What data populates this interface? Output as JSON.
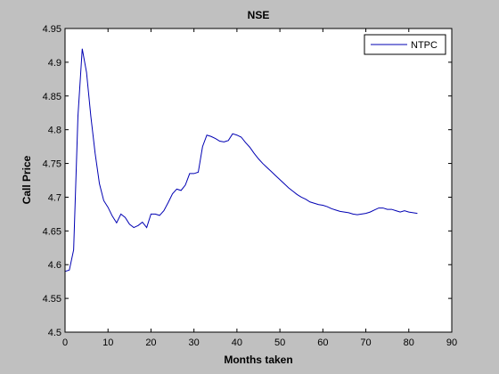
{
  "colors": {
    "figure_bg": "#c0c0c0",
    "axes_bg": "#ffffff",
    "line": "#0000b3",
    "axis": "#000000"
  },
  "chart_data": {
    "type": "line",
    "title": "NSE",
    "xlabel": "Months taken",
    "ylabel": "Call Price",
    "xlim": [
      0,
      90
    ],
    "ylim": [
      4.5,
      4.95
    ],
    "xticks": [
      0,
      10,
      20,
      30,
      40,
      50,
      60,
      70,
      80,
      90
    ],
    "yticks": [
      4.5,
      4.55,
      4.6,
      4.65,
      4.7,
      4.75,
      4.8,
      4.85,
      4.9,
      4.95
    ],
    "ytick_labels": [
      "4.5",
      "4.55",
      "4.6",
      "4.65",
      "4.7",
      "4.75",
      "4.8",
      "4.85",
      "4.9",
      "4.95"
    ],
    "grid": false,
    "legend": {
      "position": "top-right",
      "entries": [
        "NTPC"
      ]
    },
    "series": [
      {
        "name": "NTPC",
        "x": [
          0,
          1,
          2,
          3,
          4,
          5,
          6,
          7,
          8,
          9,
          10,
          11,
          12,
          13,
          14,
          15,
          16,
          17,
          18,
          19,
          20,
          21,
          22,
          23,
          24,
          25,
          26,
          27,
          28,
          29,
          30,
          31,
          32,
          33,
          34,
          35,
          36,
          37,
          38,
          39,
          40,
          41,
          42,
          43,
          44,
          45,
          46,
          47,
          48,
          49,
          50,
          51,
          52,
          53,
          54,
          55,
          56,
          57,
          58,
          59,
          60,
          61,
          62,
          63,
          64,
          65,
          66,
          67,
          68,
          69,
          70,
          71,
          72,
          73,
          74,
          75,
          76,
          77,
          78,
          79,
          80,
          81,
          82
        ],
        "y": [
          4.59,
          4.592,
          4.622,
          4.82,
          4.92,
          4.885,
          4.82,
          4.765,
          4.72,
          4.695,
          4.685,
          4.672,
          4.662,
          4.675,
          4.67,
          4.66,
          4.655,
          4.658,
          4.663,
          4.655,
          4.675,
          4.675,
          4.673,
          4.68,
          4.692,
          4.705,
          4.712,
          4.71,
          4.718,
          4.735,
          4.735,
          4.737,
          4.775,
          4.792,
          4.79,
          4.787,
          4.783,
          4.782,
          4.784,
          4.794,
          4.792,
          4.789,
          4.781,
          4.774,
          4.765,
          4.757,
          4.75,
          4.744,
          4.738,
          4.732,
          4.726,
          4.72,
          4.714,
          4.709,
          4.704,
          4.7,
          4.697,
          4.693,
          4.691,
          4.689,
          4.688,
          4.686,
          4.683,
          4.681,
          4.679,
          4.678,
          4.677,
          4.675,
          4.674,
          4.675,
          4.676,
          4.678,
          4.681,
          4.684,
          4.684,
          4.682,
          4.682,
          4.68,
          4.678,
          4.68,
          4.678,
          4.677,
          4.676
        ]
      }
    ]
  }
}
